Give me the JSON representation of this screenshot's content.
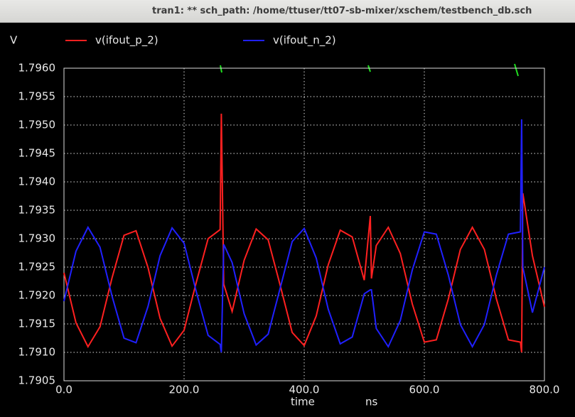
{
  "window_title": "tran1: ** sch_path: /home/ttuser/tt07-sb-mixer/xschem/testbench_db.sch",
  "chart_data": {
    "type": "line",
    "y_axis_label": "V",
    "x_axis_label": "time",
    "x_unit_label": "ns",
    "x": [
      0,
      20,
      40,
      60,
      80,
      100,
      120,
      140,
      160,
      180,
      200,
      220,
      240,
      260,
      262,
      266,
      280,
      300,
      320,
      340,
      360,
      380,
      400,
      420,
      440,
      460,
      480,
      500,
      510,
      512,
      520,
      540,
      560,
      580,
      600,
      620,
      640,
      660,
      680,
      700,
      720,
      740,
      760,
      762,
      764,
      780,
      800
    ],
    "series": [
      {
        "name": "v(ifout_p_2)",
        "color": "#ff2020",
        "values": [
          1.7924,
          1.79152,
          1.7911,
          1.79145,
          1.79231,
          1.79306,
          1.79314,
          1.79249,
          1.7916,
          1.79111,
          1.79139,
          1.79222,
          1.793,
          1.79316,
          1.7952,
          1.7922,
          1.79172,
          1.79262,
          1.79317,
          1.79298,
          1.79218,
          1.79135,
          1.79112,
          1.79164,
          1.79254,
          1.79315,
          1.79303,
          1.79227,
          1.7934,
          1.7923,
          1.79288,
          1.7932,
          1.79274,
          1.79185,
          1.79118,
          1.79122,
          1.79194,
          1.79281,
          1.7932,
          1.79281,
          1.79194,
          1.79122,
          1.79118,
          1.791,
          1.7938,
          1.7927,
          1.7918
        ]
      },
      {
        "name": "v(ifout_n_2)",
        "color": "#2020ff",
        "values": [
          1.7919,
          1.79278,
          1.7932,
          1.79285,
          1.79199,
          1.79125,
          1.79117,
          1.79181,
          1.7927,
          1.79319,
          1.79292,
          1.79208,
          1.7913,
          1.79114,
          1.791,
          1.7929,
          1.79258,
          1.79168,
          1.79113,
          1.79132,
          1.79213,
          1.79295,
          1.79318,
          1.79266,
          1.79176,
          1.79115,
          1.79127,
          1.79203,
          1.7921,
          1.7921,
          1.79142,
          1.7911,
          1.79156,
          1.79245,
          1.79312,
          1.79308,
          1.79236,
          1.79149,
          1.7911,
          1.79149,
          1.79236,
          1.79308,
          1.79312,
          1.7951,
          1.7925,
          1.7917,
          1.7925
        ]
      }
    ],
    "xlim": [
      0,
      800
    ],
    "xticks": [
      {
        "value": 0,
        "label": "0.0"
      },
      {
        "value": 200,
        "label": "200.0"
      },
      {
        "value": 400,
        "label": "400.0"
      },
      {
        "value": 600,
        "label": "600.0"
      },
      {
        "value": 800,
        "label": "800.0"
      }
    ],
    "ylim": [
      1.7905,
      1.796
    ],
    "yticks": [
      1.7905,
      {
        "value": 1.791,
        "label": "1.7910"
      },
      1.7915,
      {
        "value": 1.792,
        "label": "1.7920"
      },
      1.7925,
      {
        "value": 1.793,
        "label": "1.7930"
      },
      1.7935,
      {
        "value": 1.794,
        "label": "1.7940"
      },
      1.7945,
      {
        "value": 1.795,
        "label": "1.7950"
      },
      1.7955,
      {
        "value": 1.796,
        "label": "1.7960"
      }
    ],
    "grid": true
  }
}
